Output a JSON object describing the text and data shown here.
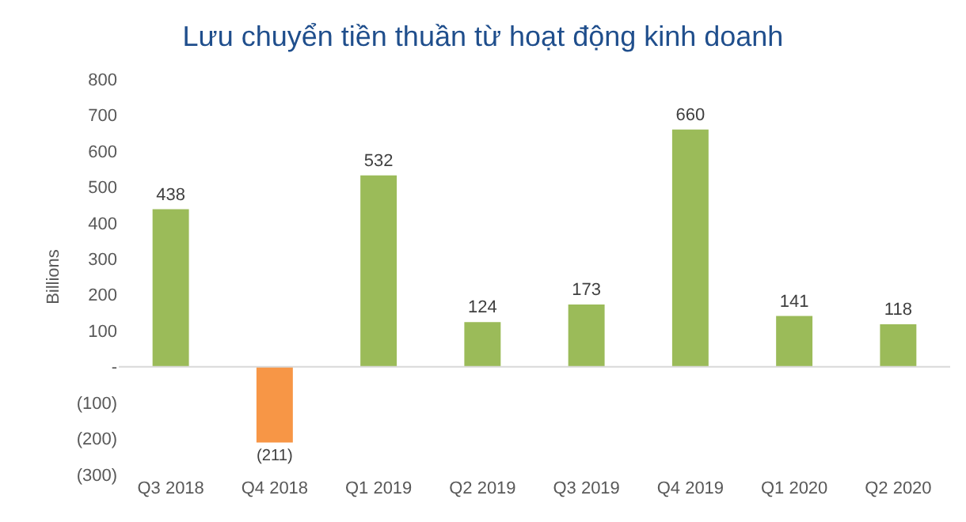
{
  "chart_data": {
    "type": "bar",
    "title": "Lưu chuyển tiền thuần từ hoạt động kinh doanh",
    "ylabel": "Billions",
    "categories": [
      "Q3 2018",
      "Q4 2018",
      "Q1 2019",
      "Q2 2019",
      "Q3 2019",
      "Q4 2019",
      "Q1 2020",
      "Q2 2020"
    ],
    "values": [
      438,
      -211,
      532,
      124,
      173,
      660,
      141,
      118
    ],
    "colors": [
      "#9bbb59",
      "#f79646",
      "#9bbb59",
      "#9bbb59",
      "#9bbb59",
      "#9bbb59",
      "#9bbb59",
      "#9bbb59"
    ],
    "value_labels": [
      "438",
      "(211)",
      "532",
      "124",
      "173",
      "660",
      "141",
      "118"
    ],
    "ylim": [
      -300,
      800
    ],
    "yticks": [
      {
        "value": -300,
        "label": "(300)"
      },
      {
        "value": -200,
        "label": "(200)"
      },
      {
        "value": -100,
        "label": "(100)"
      },
      {
        "value": 0,
        "label": "-"
      },
      100,
      200,
      300,
      400,
      500,
      600,
      700,
      800
    ],
    "ref_lines": [
      {
        "axis": "y",
        "value": 0,
        "color": "#d9d9d9"
      }
    ]
  }
}
